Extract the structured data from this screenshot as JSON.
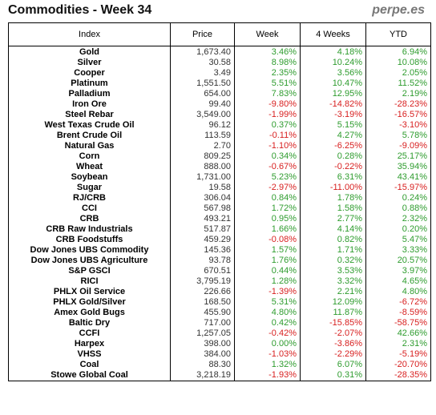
{
  "header": {
    "title": "Commodities - Week 34",
    "brand": "perpe.es"
  },
  "columns": [
    "Index",
    "Price",
    "Week",
    "4 Weeks",
    "YTD"
  ],
  "colors": {
    "positive": "#2e9c2e",
    "negative": "#d82020"
  },
  "rows": [
    {
      "name": "Gold",
      "price": "1,673.40",
      "week": "3.46%",
      "four_weeks": "4.18%",
      "ytd": "6.94%"
    },
    {
      "name": "Silver",
      "price": "30.58",
      "week": "8.98%",
      "four_weeks": "10.24%",
      "ytd": "10.08%"
    },
    {
      "name": "Cooper",
      "price": "3.49",
      "week": "2.35%",
      "four_weeks": "3.56%",
      "ytd": "2.05%"
    },
    {
      "name": "Platinum",
      "price": "1,551.50",
      "week": "5.51%",
      "four_weeks": "10.47%",
      "ytd": "11.52%"
    },
    {
      "name": "Palladium",
      "price": "654.00",
      "week": "7.83%",
      "four_weeks": "12.95%",
      "ytd": "2.19%"
    },
    {
      "name": "Iron Ore",
      "price": "99.40",
      "week": "-9.80%",
      "four_weeks": "-14.82%",
      "ytd": "-28.23%"
    },
    {
      "name": "Steel Rebar",
      "price": "3,549.00",
      "week": "-1.99%",
      "four_weeks": "-3.19%",
      "ytd": "-16.57%"
    },
    {
      "name": "West Texas Crude Oil",
      "price": "96.12",
      "week": "0.37%",
      "four_weeks": "5.15%",
      "ytd": "-3.10%"
    },
    {
      "name": "Brent Crude Oil",
      "price": "113.59",
      "week": "-0.11%",
      "four_weeks": "4.27%",
      "ytd": "5.78%"
    },
    {
      "name": "Natural Gas",
      "price": "2.70",
      "week": "-1.10%",
      "four_weeks": "-6.25%",
      "ytd": "-9.09%"
    },
    {
      "name": "Corn",
      "price": "809.25",
      "week": "0.34%",
      "four_weeks": "0.28%",
      "ytd": "25.17%"
    },
    {
      "name": "Wheat",
      "price": "888.00",
      "week": "-0.67%",
      "four_weeks": "-0.22%",
      "ytd": "35.94%"
    },
    {
      "name": "Soybean",
      "price": "1,731.00",
      "week": "5.23%",
      "four_weeks": "6.31%",
      "ytd": "43.41%"
    },
    {
      "name": "Sugar",
      "price": "19.58",
      "week": "-2.97%",
      "four_weeks": "-11.00%",
      "ytd": "-15.97%"
    },
    {
      "name": "RJ/CRB",
      "price": "306.04",
      "week": "0.84%",
      "four_weeks": "1.78%",
      "ytd": "0.24%"
    },
    {
      "name": "CCI",
      "price": "567.98",
      "week": "1.72%",
      "four_weeks": "1.58%",
      "ytd": "0.88%"
    },
    {
      "name": "CRB",
      "price": "493.21",
      "week": "0.95%",
      "four_weeks": "2.77%",
      "ytd": "2.32%"
    },
    {
      "name": "CRB Raw Industrials",
      "price": "517.87",
      "week": "1.66%",
      "four_weeks": "4.14%",
      "ytd": "0.20%"
    },
    {
      "name": "CRB Foodstuffs",
      "price": "459.29",
      "week": "-0.08%",
      "four_weeks": "0.82%",
      "ytd": "5.47%"
    },
    {
      "name": "Dow Jones UBS Commodity",
      "price": "145.36",
      "week": "1.57%",
      "four_weeks": "1.71%",
      "ytd": "3.33%"
    },
    {
      "name": "Dow Jones UBS Agriculture",
      "price": "93.78",
      "week": "1.76%",
      "four_weeks": "0.32%",
      "ytd": "20.57%"
    },
    {
      "name": "S&P GSCI",
      "price": "670.51",
      "week": "0.44%",
      "four_weeks": "3.53%",
      "ytd": "3.97%"
    },
    {
      "name": "RICI",
      "price": "3,795.19",
      "week": "1.28%",
      "four_weeks": "3.32%",
      "ytd": "4.65%"
    },
    {
      "name": "PHLX Oil Service",
      "price": "226.66",
      "week": "-1.39%",
      "four_weeks": "2.21%",
      "ytd": "4.80%"
    },
    {
      "name": "PHLX Gold/Silver",
      "price": "168.50",
      "week": "5.31%",
      "four_weeks": "12.09%",
      "ytd": "-6.72%"
    },
    {
      "name": "Amex Gold Bugs",
      "price": "455.90",
      "week": "4.80%",
      "four_weeks": "11.87%",
      "ytd": "-8.59%"
    },
    {
      "name": "Baltic Dry",
      "price": "717.00",
      "week": "0.42%",
      "four_weeks": "-15.85%",
      "ytd": "-58.75%"
    },
    {
      "name": "CCFI",
      "price": "1,257.05",
      "week": "-0.42%",
      "four_weeks": "-2.07%",
      "ytd": "42.66%"
    },
    {
      "name": "Harpex",
      "price": "398.00",
      "week": "0.00%",
      "four_weeks": "-3.86%",
      "ytd": "2.31%"
    },
    {
      "name": "VHSS",
      "price": "384.00",
      "week": "-1.03%",
      "four_weeks": "-2.29%",
      "ytd": "-5.19%"
    },
    {
      "name": "Coal",
      "price": "88.30",
      "week": "1.32%",
      "four_weeks": "6.07%",
      "ytd": "-20.70%"
    },
    {
      "name": "Stowe Global Coal",
      "price": "3,218.19",
      "week": "-1.93%",
      "four_weeks": "0.31%",
      "ytd": "-28.35%"
    }
  ]
}
